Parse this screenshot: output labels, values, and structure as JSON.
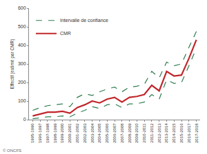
{
  "chart_data": {
    "type": "line",
    "y_label": "Effectif (estimé par CMR)",
    "annotations": [
      "© ONCFS"
    ],
    "categories": [
      "1995-1996",
      "1996-1997",
      "1997-1998",
      "1998-1999",
      "1999-2000",
      "2000-2001",
      "2001-2002",
      "2002-2003",
      "2003-2004",
      "2004-2005",
      "2005-2006",
      "2006-2007",
      "2007-2008",
      "2008-2009",
      "2009-2010",
      "2010-2011",
      "2011-2012",
      "2012-2013",
      "2013-2014",
      "2014-2015",
      "2015-2016",
      "2016-2017",
      "2017-2018"
    ],
    "series": [
      {
        "name": "Intervalle de confiance",
        "color": "#2e7d4f",
        "line_style": "dashed",
        "values": [
          50,
          65,
          75,
          80,
          85,
          70,
          120,
          140,
          130,
          150,
          165,
          175,
          150,
          175,
          180,
          190,
          260,
          225,
          310,
          290,
          300,
          390,
          475
        ]
      },
      {
        "name": "Intervalle de confiance",
        "color": "#2e7d4f",
        "line_style": "dashed",
        "values": [
          5,
          10,
          15,
          15,
          20,
          15,
          35,
          50,
          70,
          60,
          80,
          85,
          65,
          85,
          85,
          95,
          135,
          110,
          215,
          195,
          200,
          290,
          385
        ]
      },
      {
        "name": "CMR",
        "color": "#c0262b",
        "line_style": "solid",
        "values": [
          20,
          30,
          40,
          40,
          45,
          35,
          65,
          80,
          100,
          90,
          110,
          120,
          95,
          120,
          125,
          135,
          185,
          155,
          260,
          235,
          240,
          330,
          430
        ]
      }
    ],
    "ylim": [
      0,
      600
    ],
    "yticks": [
      0,
      100,
      200,
      300,
      400,
      500,
      600
    ],
    "grid": false,
    "legend": "top left"
  }
}
